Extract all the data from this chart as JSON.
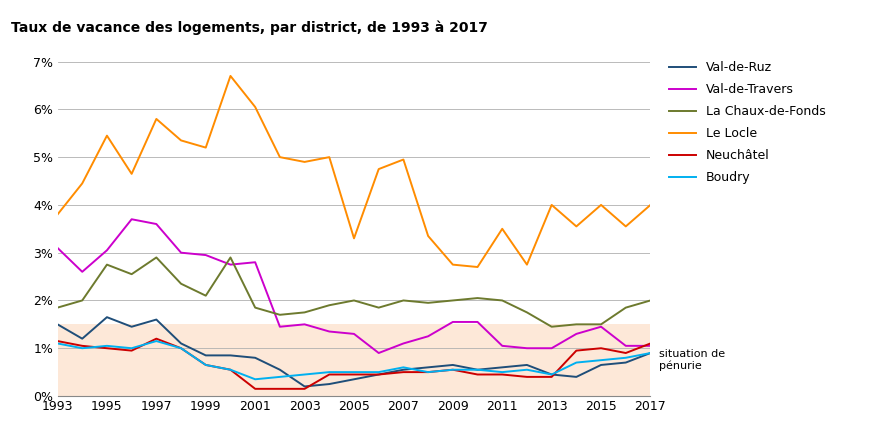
{
  "title": "Taux de vacance des logements, par district, de 1993 à 2017",
  "title_fontsize": 10,
  "title_bg": "#d4d4d4",
  "years": [
    1993,
    1994,
    1995,
    1996,
    1997,
    1998,
    1999,
    2000,
    2001,
    2002,
    2003,
    2004,
    2005,
    2006,
    2007,
    2008,
    2009,
    2010,
    2011,
    2012,
    2013,
    2014,
    2015,
    2016,
    2017
  ],
  "series": {
    "Val-de-Ruz": {
      "color": "#1f4e79",
      "values": [
        1.5,
        1.2,
        1.65,
        1.45,
        1.6,
        1.1,
        0.85,
        0.85,
        0.8,
        0.55,
        0.2,
        0.25,
        0.35,
        0.45,
        0.55,
        0.6,
        0.65,
        0.55,
        0.6,
        0.65,
        0.45,
        0.4,
        0.65,
        0.7,
        0.9
      ]
    },
    "Val-de-Travers": {
      "color": "#cc00cc",
      "values": [
        3.1,
        2.6,
        3.05,
        3.7,
        3.6,
        3.0,
        2.95,
        2.75,
        2.8,
        1.45,
        1.5,
        1.35,
        1.3,
        0.9,
        1.1,
        1.25,
        1.55,
        1.55,
        1.05,
        1.0,
        1.0,
        1.3,
        1.45,
        1.05,
        1.05
      ]
    },
    "La Chaux-de-Fonds": {
      "color": "#6d7a2e",
      "values": [
        1.85,
        2.0,
        2.75,
        2.55,
        2.9,
        2.35,
        2.1,
        2.9,
        1.85,
        1.7,
        1.75,
        1.9,
        2.0,
        1.85,
        2.0,
        1.95,
        2.0,
        2.05,
        2.0,
        1.75,
        1.45,
        1.5,
        1.5,
        1.85,
        2.0
      ]
    },
    "Le Locle": {
      "color": "#ff8c00",
      "values": [
        3.8,
        4.45,
        5.45,
        4.65,
        5.8,
        5.35,
        5.2,
        6.7,
        6.05,
        5.0,
        4.9,
        5.0,
        3.3,
        4.75,
        4.95,
        3.35,
        2.75,
        2.7,
        3.5,
        2.75,
        4.0,
        3.55,
        4.0,
        3.55,
        4.0
      ]
    },
    "Neuchâtel": {
      "color": "#cc0000",
      "values": [
        1.15,
        1.05,
        1.0,
        0.95,
        1.2,
        1.0,
        0.65,
        0.55,
        0.15,
        0.15,
        0.15,
        0.45,
        0.45,
        0.45,
        0.5,
        0.5,
        0.55,
        0.45,
        0.45,
        0.4,
        0.4,
        0.95,
        1.0,
        0.9,
        1.1
      ]
    },
    "Boudry": {
      "color": "#00b0f0",
      "values": [
        1.1,
        1.0,
        1.05,
        1.0,
        1.15,
        1.0,
        0.65,
        0.55,
        0.35,
        0.4,
        0.45,
        0.5,
        0.5,
        0.5,
        0.6,
        0.5,
        0.55,
        0.55,
        0.5,
        0.55,
        0.45,
        0.7,
        0.75,
        0.8,
        0.9
      ]
    }
  },
  "series_order": [
    "Val-de-Ruz",
    "Val-de-Travers",
    "La Chaux-de-Fonds",
    "Le Locle",
    "Neuchâtel",
    "Boudry"
  ],
  "penurie_threshold": 1.5,
  "penurie_color": "#fde8d8",
  "penurie_label": "situation de\npénurie",
  "ylim": [
    0,
    0.07
  ],
  "yticks": [
    0.0,
    0.01,
    0.02,
    0.03,
    0.04,
    0.05,
    0.06,
    0.07
  ],
  "ytick_labels": [
    "0%",
    "1%",
    "2%",
    "3%",
    "4%",
    "5%",
    "6%",
    "7%"
  ],
  "xticks": [
    1993,
    1995,
    1997,
    1999,
    2001,
    2003,
    2005,
    2007,
    2009,
    2011,
    2013,
    2015,
    2017
  ],
  "background_color": "#ffffff",
  "grid_color": "#b0b0b0",
  "legend_fontsize": 9,
  "axis_fontsize": 9
}
